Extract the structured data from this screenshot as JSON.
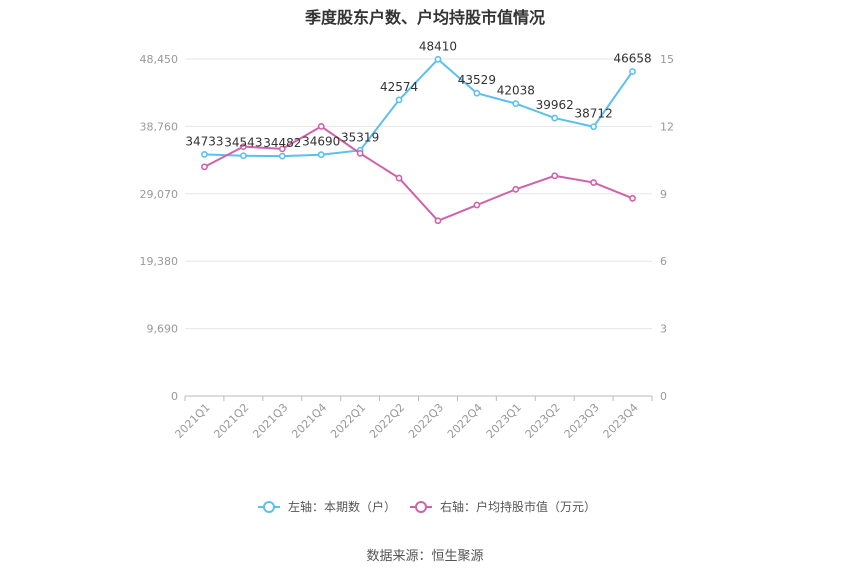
{
  "chart_data": {
    "type": "line",
    "title": "季度股东户数、户均持股市值情况",
    "categories": [
      "2021Q1",
      "2021Q2",
      "2021Q3",
      "2021Q4",
      "2022Q1",
      "2022Q2",
      "2022Q3",
      "2022Q4",
      "2023Q1",
      "2023Q2",
      "2023Q3",
      "2023Q4"
    ],
    "left_axis": {
      "ticks": [
        "0",
        "9,690",
        "19,380",
        "29,070",
        "38,760",
        "48,450"
      ],
      "ylim": [
        0,
        48450
      ]
    },
    "right_axis": {
      "ticks": [
        "0",
        "3",
        "6",
        "9",
        "12",
        "15"
      ],
      "ylim": [
        0,
        15
      ]
    },
    "series": [
      {
        "name": "左轴：本期数（户）",
        "axis": "left",
        "color": "#5bc0eb",
        "values": [
          34733,
          34543,
          34482,
          34690,
          35319,
          42574,
          48410,
          43529,
          42038,
          39962,
          38712,
          46658
        ],
        "labels": [
          "34733",
          "34543",
          "34482",
          "34690",
          "35319",
          "42574",
          "48410",
          "43529",
          "42038",
          "39962",
          "38712",
          "46658"
        ]
      },
      {
        "name": "右轴：户均持股市值（万元）",
        "axis": "right",
        "color": "#d062a9",
        "values": [
          10.2,
          11.1,
          11.0,
          12.0,
          10.8,
          9.7,
          7.8,
          8.5,
          9.2,
          9.8,
          9.5,
          8.8
        ]
      }
    ],
    "grid": true,
    "legend": "bottom"
  },
  "source": "数据来源：恒生聚源"
}
